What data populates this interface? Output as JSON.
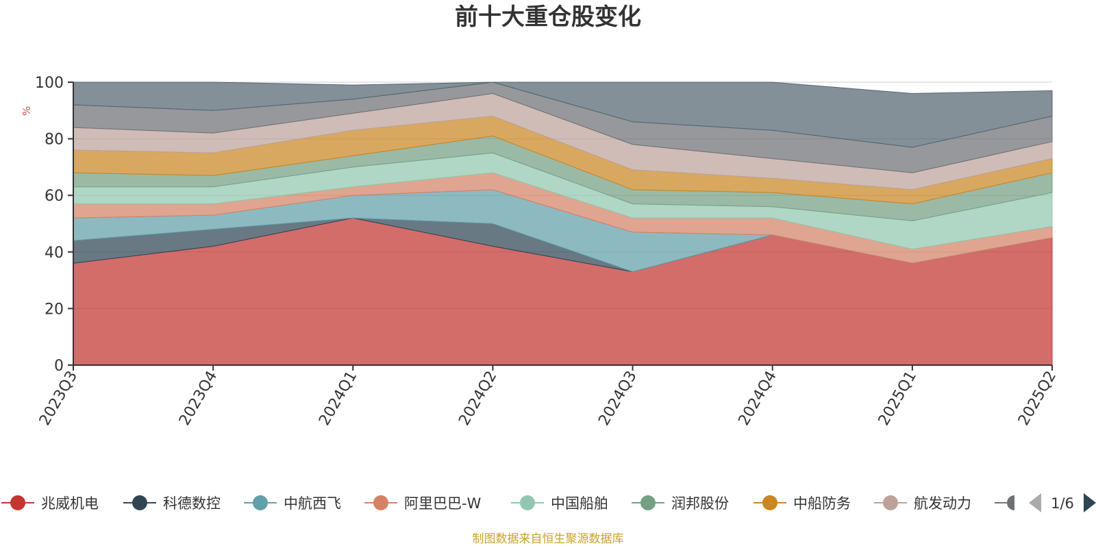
{
  "chart_data": {
    "type": "area",
    "title": "前十大重仓股变化",
    "ylabel": "%",
    "ylim": [
      0,
      100
    ],
    "yticks": [
      0,
      20,
      40,
      60,
      80,
      100
    ],
    "grid": true,
    "x": [
      "2023Q3",
      "2023Q4",
      "2024Q1",
      "2024Q2",
      "2024Q3",
      "2024Q4",
      "2025Q1",
      "2025Q2"
    ],
    "series": [
      {
        "name": "兆威机电",
        "color": "#c23531",
        "values": [
          36,
          42,
          52,
          42,
          33,
          46,
          36,
          45
        ]
      },
      {
        "name": "科德数控",
        "color": "#2f4554",
        "values": [
          8,
          6,
          0,
          8,
          0,
          0,
          0,
          0
        ]
      },
      {
        "name": "中航西飞",
        "color": "#61a0a8",
        "values": [
          8,
          5,
          8,
          12,
          14,
          0,
          0,
          0
        ]
      },
      {
        "name": "阿里巴巴-W",
        "color": "#d48265",
        "values": [
          5,
          4,
          3,
          6,
          5,
          6,
          5,
          4
        ]
      },
      {
        "name": "中国船舶",
        "color": "#91c7ae",
        "values": [
          6,
          6,
          7,
          7,
          5,
          4,
          10,
          12
        ]
      },
      {
        "name": "润邦股份",
        "color": "#749f83",
        "values": [
          5,
          4,
          4,
          6,
          5,
          5,
          6,
          7
        ]
      },
      {
        "name": "中船防务",
        "color": "#ca8622",
        "values": [
          8,
          8,
          9,
          7,
          7,
          5,
          5,
          5
        ]
      },
      {
        "name": "航发动力",
        "color": "#bda29a",
        "values": [
          8,
          7,
          6,
          8,
          9,
          7,
          6,
          6
        ]
      },
      {
        "name": "",
        "color": "#6e7074",
        "values": [
          8,
          8,
          5,
          4,
          8,
          10,
          9,
          9
        ]
      },
      {
        "name": "",
        "color": "#546570",
        "values": [
          8,
          10,
          5,
          0,
          14,
          17,
          19,
          9
        ]
      }
    ],
    "legend_position": "bottom"
  },
  "legend": {
    "page_indicator": "1/6"
  },
  "footer": {
    "source": "制图数据来自恒生聚源数据库"
  }
}
